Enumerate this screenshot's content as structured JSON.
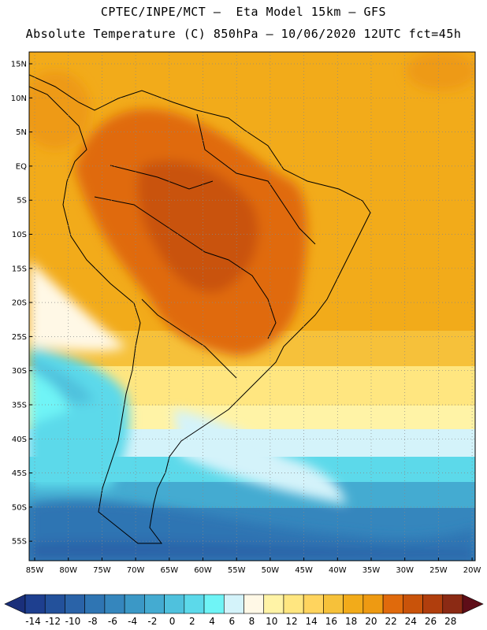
{
  "header": {
    "line1": "CPTEC/INPE/MCT –  Eta Model 15km – GFS",
    "line2": "Absolute Temperature (C) 850hPa – 10/06/2020 12UTC fct=45h"
  },
  "map": {
    "lat_labels": [
      "15N",
      "10N",
      "5N",
      "EQ",
      "5S",
      "10S",
      "15S",
      "20S",
      "25S",
      "30S",
      "35S",
      "40S",
      "45S",
      "50S",
      "55S"
    ],
    "lon_labels": [
      "85W",
      "80W",
      "75W",
      "70W",
      "65W",
      "60W",
      "55W",
      "50W",
      "45W",
      "40W",
      "35W",
      "30W",
      "25W",
      "20W"
    ],
    "grid": "dotted"
  },
  "colorbar": {
    "labels": [
      "-14",
      "-12",
      "-10",
      "-8",
      "-6",
      "-4",
      "-2",
      "0",
      "2",
      "4",
      "6",
      "8",
      "10",
      "12",
      "14",
      "16",
      "18",
      "20",
      "22",
      "24",
      "26",
      "28"
    ],
    "colors": [
      "#1e3f8f",
      "#23519b",
      "#2a63a8",
      "#2f75b3",
      "#3586bd",
      "#3b98c6",
      "#44abd1",
      "#4fc1dd",
      "#5cd9ea",
      "#6ff4f6",
      "#d4f3fa",
      "#fff8e6",
      "#fff3a6",
      "#ffe680",
      "#ffd45e",
      "#f6c13a",
      "#f2ab1a",
      "#ee9a12",
      "#e06a0c",
      "#c9530a",
      "#b03e0d",
      "#8b2a14"
    ],
    "left_arrow_color": "#1a2f7a",
    "right_arrow_color": "#5e0d18"
  }
}
